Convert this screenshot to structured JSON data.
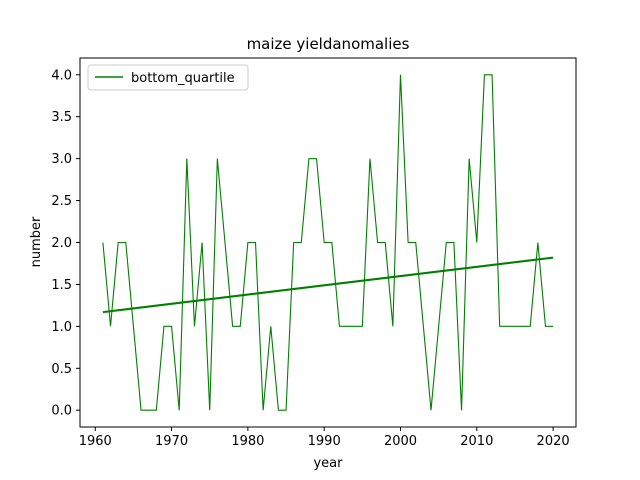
{
  "chart_data": {
    "type": "line",
    "title": "maize yieldanomalies",
    "xlabel": "year",
    "ylabel": "number",
    "xlim": [
      1958,
      2023
    ],
    "ylim": [
      -0.2,
      4.2
    ],
    "xticks": [
      1960,
      1970,
      1980,
      1990,
      2000,
      2010,
      2020
    ],
    "yticks": [
      "0.0",
      "0.5",
      "1.0",
      "1.5",
      "2.0",
      "2.5",
      "3.0",
      "3.5",
      "4.0"
    ],
    "legend": {
      "placement": "top-left",
      "entries": [
        "bottom_quartile"
      ]
    },
    "grid": false,
    "series": [
      {
        "name": "bottom_quartile",
        "color": "#008000",
        "x": [
          1961,
          1962,
          1963,
          1964,
          1965,
          1966,
          1967,
          1968,
          1969,
          1970,
          1971,
          1972,
          1973,
          1974,
          1975,
          1976,
          1977,
          1978,
          1979,
          1980,
          1981,
          1982,
          1983,
          1984,
          1985,
          1986,
          1987,
          1988,
          1989,
          1990,
          1991,
          1992,
          1993,
          1994,
          1995,
          1996,
          1997,
          1998,
          1999,
          2000,
          2001,
          2002,
          2003,
          2004,
          2005,
          2006,
          2007,
          2008,
          2009,
          2010,
          2011,
          2012,
          2013,
          2014,
          2015,
          2016,
          2017,
          2018,
          2019,
          2020
        ],
        "values": [
          2,
          1,
          2,
          2,
          1,
          0,
          0,
          0,
          1,
          1,
          0,
          3,
          1,
          2,
          0,
          3,
          2,
          1,
          1,
          2,
          2,
          0,
          1,
          0,
          0,
          2,
          2,
          3,
          3,
          2,
          2,
          1,
          1,
          1,
          1,
          3,
          2,
          2,
          1,
          4,
          2,
          2,
          1,
          0,
          1,
          2,
          2,
          0,
          3,
          2,
          4,
          4,
          1,
          1,
          1,
          1,
          1,
          2,
          1,
          1
        ]
      }
    ],
    "trend": {
      "color": "#008000",
      "x": [
        1961,
        2020
      ],
      "values": [
        1.17,
        1.82
      ]
    }
  }
}
